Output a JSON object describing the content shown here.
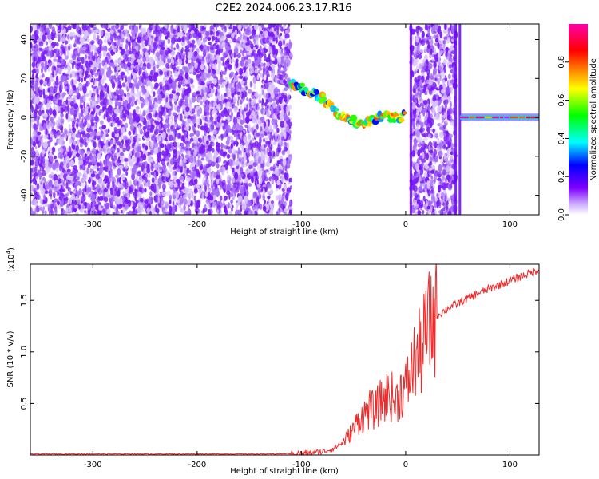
{
  "figure_title": "C2E2.2024.006.23.17.R16",
  "chart_data": [
    {
      "type": "heatmap",
      "xlabel": "Height of straight line (km)",
      "ylabel": "Frequency (Hz)",
      "xlim": [
        -360,
        128
      ],
      "ylim": [
        -50,
        48
      ],
      "xticks": [
        -300,
        -200,
        -100,
        0,
        100
      ],
      "yticks": [
        -40,
        -20,
        0,
        20,
        40
      ],
      "colorbar": {
        "label": "Normalized spectral amplitude",
        "range": [
          0.0,
          1.0
        ],
        "ticks": [
          0.0,
          0.2,
          0.4,
          0.6,
          0.8
        ],
        "colors": [
          "#ffffff",
          "#7f00ff",
          "#0000ff",
          "#00ffff",
          "#00ff00",
          "#ffff00",
          "#ff8000",
          "#ff0000",
          "#ff00ff"
        ]
      },
      "regions": [
        {
          "x": [
            -360,
            -110
          ],
          "f": [
            -50,
            48
          ],
          "amplitude": [
            0.0,
            0.1
          ],
          "pattern": "noise"
        },
        {
          "x": [
            -110,
            0
          ],
          "f": [
            -10,
            17
          ],
          "amplitude": [
            0.2,
            0.9
          ],
          "pattern": "signal track"
        },
        {
          "x": [
            5,
            48
          ],
          "f": [
            -50,
            48
          ],
          "amplitude": [
            0.0,
            0.1
          ],
          "pattern": "noise"
        },
        {
          "x": [
            52,
            128
          ],
          "f": [
            -1,
            1
          ],
          "amplitude": [
            0.3,
            1.0
          ],
          "pattern": "steady line"
        }
      ],
      "signal_track": [
        {
          "x": -110,
          "f": 17
        },
        {
          "x": -100,
          "f": 15
        },
        {
          "x": -90,
          "f": 13
        },
        {
          "x": -80,
          "f": 10
        },
        {
          "x": -70,
          "f": 5
        },
        {
          "x": -60,
          "f": 0
        },
        {
          "x": -50,
          "f": -2
        },
        {
          "x": -40,
          "f": -3
        },
        {
          "x": -30,
          "f": -1
        },
        {
          "x": -20,
          "f": 1
        },
        {
          "x": -10,
          "f": 0
        },
        {
          "x": 0,
          "f": 1
        }
      ],
      "vertical_streaks_x": [
        5,
        48,
        52
      ]
    },
    {
      "type": "line",
      "xlabel": "Height of straight line (km)",
      "ylabel": "SNR (10 * v/v)",
      "scale_note": "(x10",
      "scale_exp": "4",
      "scale_close": ")",
      "xlim": [
        -360,
        128
      ],
      "ylim": [
        0,
        1.85
      ],
      "xticks": [
        -300,
        -200,
        -100,
        0,
        100
      ],
      "yticks": [
        0.5,
        1.0,
        1.5
      ],
      "ytick_labels": [
        "0.5",
        "1.0",
        "1.5"
      ],
      "color": "#ee2b2b",
      "series": [
        {
          "x": [
            -360,
            -300,
            -200,
            -130,
            -100,
            -80,
            -70,
            -60,
            -50,
            -45,
            -40,
            -35,
            -30,
            -25,
            -20,
            -15,
            -10,
            -5,
            0,
            5,
            10,
            15,
            20,
            25,
            30,
            40,
            50,
            60,
            70,
            80,
            90,
            100,
            110,
            120,
            128
          ],
          "values": [
            0.01,
            0.01,
            0.01,
            0.01,
            0.015,
            0.03,
            0.06,
            0.12,
            0.25,
            0.35,
            0.38,
            0.45,
            0.42,
            0.5,
            0.55,
            0.6,
            0.5,
            0.62,
            0.65,
            0.8,
            0.95,
            1.0,
            1.2,
            1.3,
            1.35,
            1.42,
            1.47,
            1.52,
            1.57,
            1.61,
            1.65,
            1.69,
            1.73,
            1.77,
            1.8
          ]
        }
      ]
    }
  ]
}
